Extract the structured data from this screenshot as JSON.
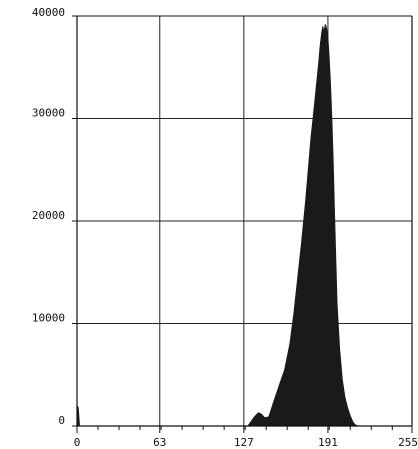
{
  "chart_data": {
    "type": "area",
    "title": "",
    "xlabel": "",
    "ylabel": "",
    "xlim": [
      0,
      255
    ],
    "ylim": [
      0,
      40000
    ],
    "grid": true,
    "x_ticks": [
      0,
      63,
      127,
      191,
      255
    ],
    "y_ticks": [
      0,
      10000,
      20000,
      30000,
      40000
    ],
    "x_tick_labels": [
      "0",
      "63",
      "127",
      "191",
      "255"
    ],
    "y_tick_labels": [
      "0",
      "10000",
      "20000",
      "30000",
      "40000"
    ],
    "colors": {
      "fill": "#1a1a1a",
      "grid": "#222222",
      "axis": "#111111"
    },
    "series": [
      {
        "x": [
          0,
          1,
          2,
          130,
          135,
          138,
          140,
          143,
          146,
          150,
          154,
          158,
          162,
          165,
          168,
          171,
          174,
          176,
          178,
          180,
          182,
          184,
          185,
          186,
          187,
          188,
          189,
          190,
          191,
          192,
          193,
          194,
          195,
          196,
          197,
          198,
          200,
          202,
          204,
          206,
          208,
          210,
          212,
          214,
          216
        ],
        "values": [
          2000,
          1800,
          0,
          0,
          900,
          1300,
          1200,
          800,
          900,
          2500,
          4000,
          5500,
          8000,
          11000,
          14500,
          18000,
          22000,
          25000,
          28000,
          30500,
          33000,
          35500,
          37000,
          38200,
          39000,
          38500,
          39200,
          38800,
          38000,
          36000,
          33500,
          30000,
          26000,
          21000,
          16500,
          12000,
          7500,
          4500,
          2800,
          1800,
          1000,
          400,
          100,
          0,
          0
        ]
      }
    ]
  }
}
